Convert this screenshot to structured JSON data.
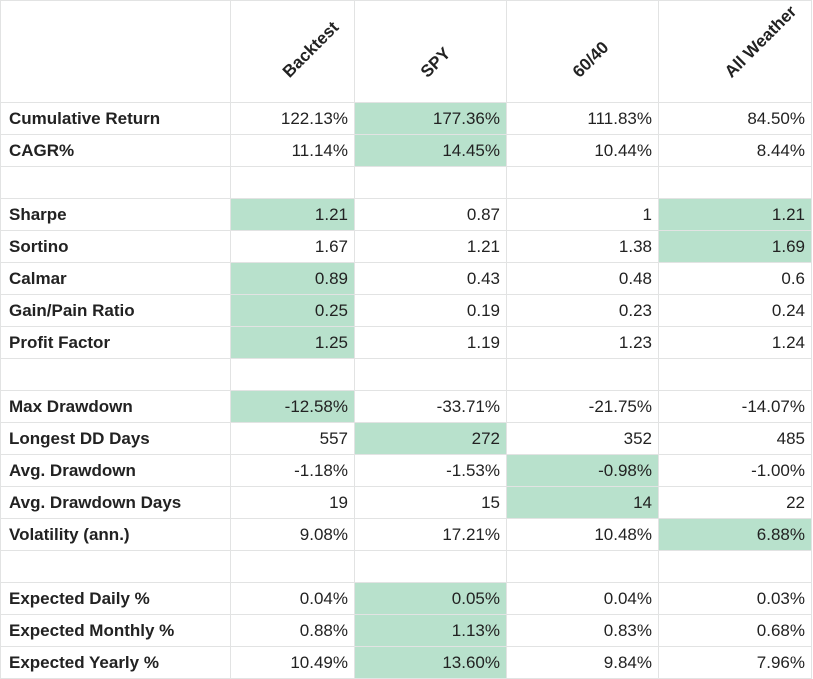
{
  "sheet": {
    "headers": [
      "",
      "Backtest",
      "SPY",
      "60/40",
      "All Weather"
    ],
    "highlight_color": "#b8e1cc",
    "rows": [
      {
        "label": "Cumulative Return",
        "values": [
          "122.13%",
          "177.36%",
          "111.83%",
          "84.50%"
        ],
        "highlight": [
          false,
          true,
          false,
          false
        ]
      },
      {
        "label": "CAGR%",
        "values": [
          "11.14%",
          "14.45%",
          "10.44%",
          "8.44%"
        ],
        "highlight": [
          false,
          true,
          false,
          false
        ]
      },
      {
        "label": "",
        "values": [
          "",
          "",
          "",
          ""
        ],
        "highlight": [
          false,
          false,
          false,
          false
        ]
      },
      {
        "label": "Sharpe",
        "values": [
          "1.21",
          "0.87",
          "1",
          "1.21"
        ],
        "highlight": [
          true,
          false,
          false,
          true
        ]
      },
      {
        "label": "Sortino",
        "values": [
          "1.67",
          "1.21",
          "1.38",
          "1.69"
        ],
        "highlight": [
          false,
          false,
          false,
          true
        ]
      },
      {
        "label": "Calmar",
        "values": [
          "0.89",
          "0.43",
          "0.48",
          "0.6"
        ],
        "highlight": [
          true,
          false,
          false,
          false
        ]
      },
      {
        "label": "Gain/Pain Ratio",
        "values": [
          "0.25",
          "0.19",
          "0.23",
          "0.24"
        ],
        "highlight": [
          true,
          false,
          false,
          false
        ]
      },
      {
        "label": "Profit Factor",
        "values": [
          "1.25",
          "1.19",
          "1.23",
          "1.24"
        ],
        "highlight": [
          true,
          false,
          false,
          false
        ]
      },
      {
        "label": "",
        "values": [
          "",
          "",
          "",
          ""
        ],
        "highlight": [
          false,
          false,
          false,
          false
        ]
      },
      {
        "label": "Max Drawdown",
        "values": [
          "-12.58%",
          "-33.71%",
          "-21.75%",
          "-14.07%"
        ],
        "highlight": [
          true,
          false,
          false,
          false
        ]
      },
      {
        "label": "Longest DD Days",
        "values": [
          "557",
          "272",
          "352",
          "485"
        ],
        "highlight": [
          false,
          true,
          false,
          false
        ]
      },
      {
        "label": "Avg. Drawdown",
        "values": [
          "-1.18%",
          "-1.53%",
          "-0.98%",
          "-1.00%"
        ],
        "highlight": [
          false,
          false,
          true,
          false
        ]
      },
      {
        "label": "Avg. Drawdown Days",
        "values": [
          "19",
          "15",
          "14",
          "22"
        ],
        "highlight": [
          false,
          false,
          true,
          false
        ]
      },
      {
        "label": "Volatility (ann.)",
        "values": [
          "9.08%",
          "17.21%",
          "10.48%",
          "6.88%"
        ],
        "highlight": [
          false,
          false,
          false,
          true
        ]
      },
      {
        "label": "",
        "values": [
          "",
          "",
          "",
          ""
        ],
        "highlight": [
          false,
          false,
          false,
          false
        ]
      },
      {
        "label": "Expected Daily %",
        "values": [
          "0.04%",
          "0.05%",
          "0.04%",
          "0.03%"
        ],
        "highlight": [
          false,
          true,
          false,
          false
        ]
      },
      {
        "label": "Expected Monthly %",
        "values": [
          "0.88%",
          "1.13%",
          "0.83%",
          "0.68%"
        ],
        "highlight": [
          false,
          true,
          false,
          false
        ]
      },
      {
        "label": "Expected Yearly %",
        "values": [
          "10.49%",
          "13.60%",
          "9.84%",
          "7.96%"
        ],
        "highlight": [
          false,
          true,
          false,
          false
        ]
      }
    ]
  }
}
